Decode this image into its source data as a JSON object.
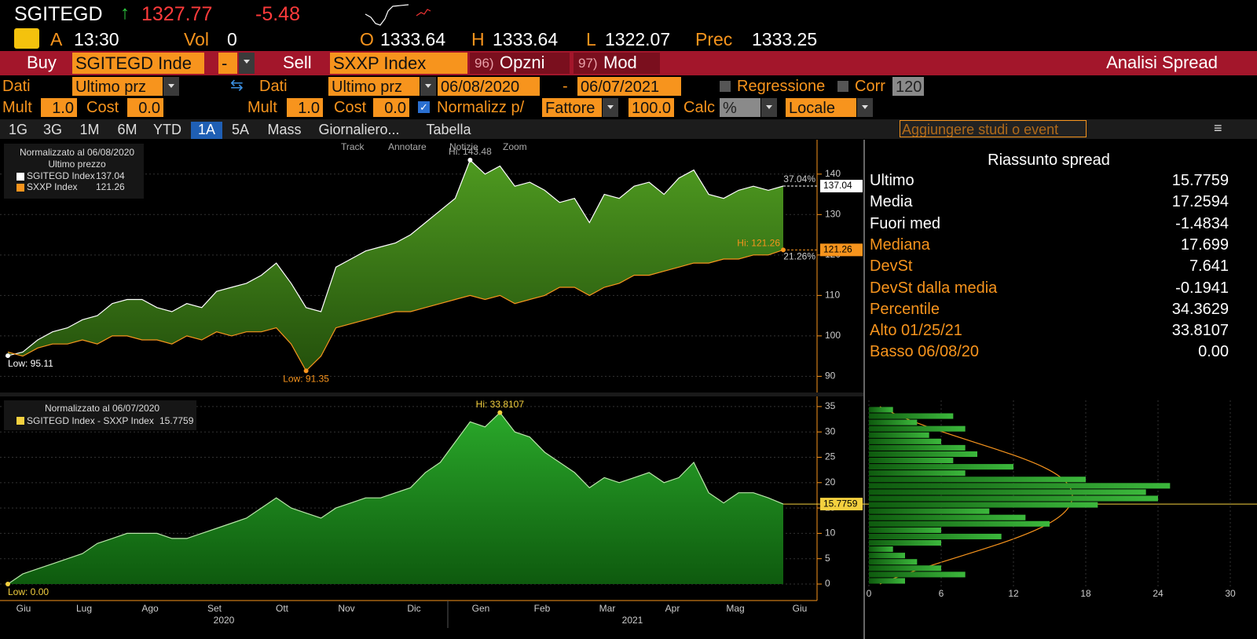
{
  "header": {
    "ticker": "SGITEGD",
    "last": "1327.77",
    "change": "-5.48",
    "source": "A",
    "time": "13:30",
    "vol_label": "Vol",
    "vol": "0",
    "open_label": "O",
    "open": "1333.64",
    "high_label": "H",
    "high": "1333.64",
    "low_label": "L",
    "low": "1322.07",
    "prev_label": "Prec",
    "prev": "1333.25"
  },
  "toolbar": {
    "buy": "Buy",
    "buy_security": "SGITEGD Inde",
    "buy_op": "-",
    "sell": "Sell",
    "sell_security": "SXXP Index",
    "options_num": "96)",
    "options": "Opzni",
    "mod_num": "97)",
    "mod": "Mod",
    "function_title": "Analisi Spread"
  },
  "settings": {
    "data_label_1": "Dati",
    "data_field_1": "Ultimo prz",
    "data_label_2": "Dati",
    "data_field_2": "Ultimo prz",
    "start_date": "06/08/2020",
    "date_sep": "-",
    "end_date": "06/07/2021",
    "regression": "Regressione",
    "corr": "Corr",
    "corr_window": "120",
    "mult_label_1": "Mult",
    "mult_1": "1.0",
    "cost_label_1": "Cost",
    "cost_1": "0.0",
    "mult_label_2": "Mult",
    "mult_2": "1.0",
    "cost_label_2": "Cost",
    "cost_2": "0.0",
    "normalize": "Normalizz p/",
    "normalize_mode": "Fattore",
    "normalize_value": "100.0",
    "calc_label": "Calc",
    "calc": "%",
    "currency": "Locale"
  },
  "tabs": [
    "1G",
    "3G",
    "1M",
    "6M",
    "YTD",
    "1A",
    "5A",
    "Mass",
    "Giornaliero...",
    "Tabella"
  ],
  "study_search": "Aggiungere studi o event",
  "chart_toolbar": [
    "Track",
    "Annotare",
    "Notizie",
    "Zoom"
  ],
  "chart_data": [
    {
      "type": "area",
      "legend_title": "Normalizzato al 06/08/2020",
      "legend_subtitle": "Ultimo prezzo",
      "series": [
        {
          "name": "SGITEGD Index",
          "color": "#ffffff",
          "change_label": "37.04%",
          "hi_label": "Hi: 143.48",
          "low_label": "Low: 95.11",
          "values": [
            95.11,
            96,
            99,
            101,
            102,
            104,
            105,
            108,
            109,
            109,
            107,
            106,
            108,
            107,
            111,
            112,
            113,
            115,
            118,
            113,
            107,
            106,
            117,
            119,
            121,
            122,
            123,
            125,
            128,
            131,
            134,
            143.48,
            140,
            142,
            137,
            138,
            136,
            133,
            134,
            128,
            135,
            134,
            137,
            138,
            135,
            139,
            141,
            135,
            134,
            136,
            137,
            136,
            137.04
          ]
        },
        {
          "name": "SXXP Index",
          "color": "#f7941d",
          "change_label": "21.26%",
          "hi_label": "Hi: 121.26",
          "low_label": "Low: 91.35",
          "values": [
            96,
            95,
            97,
            98,
            98,
            99,
            98,
            100,
            100,
            99,
            99,
            98,
            100,
            99,
            101,
            100,
            101,
            101,
            102,
            98,
            91.35,
            95,
            102,
            103,
            104,
            105,
            106,
            106,
            107,
            108,
            109,
            110,
            109,
            110,
            108,
            109,
            110,
            112,
            112,
            110,
            112,
            113,
            115,
            115,
            116,
            117,
            118,
            118,
            119,
            119,
            120,
            120,
            121.26
          ]
        }
      ],
      "fill": "#3d7a18",
      "ylim": [
        86,
        148.5
      ],
      "yticks": [
        90,
        100,
        110,
        120,
        130,
        140
      ],
      "grid": true
    },
    {
      "type": "area",
      "legend_title": "Normalizzato al 06/07/2020",
      "series": [
        {
          "name": "SGITEGD Index - SXXP Index",
          "color": "#b8e6a8",
          "hi_label": "Hi: 33.8107",
          "low_label": "Low: 0.00",
          "values": [
            0,
            2,
            3,
            4,
            5,
            6,
            8,
            9,
            10,
            10,
            10,
            9,
            9,
            10,
            11,
            12,
            13,
            15,
            17,
            15,
            14,
            13,
            15,
            16,
            17,
            17,
            18,
            19,
            22,
            24,
            28,
            32,
            31,
            33.8107,
            30,
            29,
            26,
            24,
            22,
            19,
            21,
            20,
            21,
            22,
            20,
            21,
            24,
            18,
            16,
            18,
            18,
            17,
            15.7759
          ]
        }
      ],
      "fill": "#1e8a1e",
      "ylim": [
        -3.25,
        37
      ],
      "yticks": [
        0,
        5,
        10,
        15,
        20,
        25,
        30,
        35
      ],
      "grid": true,
      "x_labels": [
        "Giu",
        "Lug",
        "Ago",
        "Set",
        "Ott",
        "Nov",
        "Dic",
        "Gen",
        "Feb",
        "Mar",
        "Apr",
        "Mag",
        "Giu"
      ],
      "year_labels": [
        "2020",
        "2021"
      ]
    },
    {
      "type": "histogram",
      "orientation": "horizontal",
      "color": "#2e8a1e",
      "bins": [
        0,
        1.25,
        2.5,
        3.75,
        5,
        6.25,
        7.5,
        8.75,
        10,
        11.25,
        12.5,
        13.75,
        15,
        16.25,
        17.5,
        18.75,
        20,
        21.25,
        22.5,
        23.75,
        25,
        26.25,
        27.5,
        28.75,
        30,
        31.25,
        32.5,
        33.75,
        35
      ],
      "values": [
        3,
        8,
        6,
        4,
        3,
        2,
        6,
        11,
        6,
        15,
        13,
        10,
        19,
        24,
        23,
        25,
        18,
        8,
        12,
        7,
        9,
        8,
        6,
        5,
        8,
        4,
        7,
        2
      ],
      "xlim": [
        0,
        30
      ],
      "xticks": [
        0,
        6,
        12,
        18,
        24,
        30
      ],
      "grid": true
    }
  ],
  "summary": {
    "title": "Riassunto spread",
    "rows": [
      [
        "Ultimo",
        "15.7759"
      ],
      [
        "Media",
        "17.2594"
      ],
      [
        "Fuori med",
        "-1.4834"
      ],
      [
        "Mediana",
        "17.699"
      ],
      [
        "DevSt",
        "7.641"
      ],
      [
        "DevSt dalla media",
        "-0.1941"
      ],
      [
        "Percentile",
        "34.3629"
      ],
      [
        "Alto 01/25/21",
        "33.8107"
      ],
      [
        "Basso 06/08/20",
        "0.00"
      ]
    ]
  }
}
